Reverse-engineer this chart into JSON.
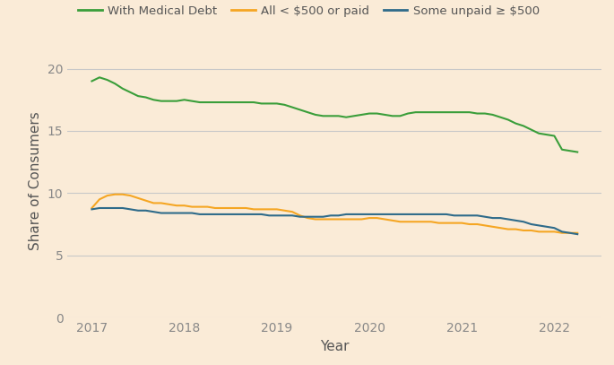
{
  "title": "",
  "xlabel": "Year",
  "ylabel": "Share of Consumers",
  "background_color": "#faebd7",
  "grid_color": "#c8c8c8",
  "ylim": [
    0,
    22
  ],
  "yticks": [
    0,
    5,
    10,
    15,
    20
  ],
  "legend_labels": [
    "With Medical Debt",
    "All < $500 or paid",
    "Some unpaid ≥ $500"
  ],
  "legend_colors": [
    "#3a9e3a",
    "#f5a623",
    "#2e6b8a"
  ],
  "series": {
    "with_medical_debt": {
      "color": "#3a9e3a",
      "x": [
        2017.0,
        2017.083,
        2017.167,
        2017.25,
        2017.333,
        2017.417,
        2017.5,
        2017.583,
        2017.667,
        2017.75,
        2017.833,
        2017.917,
        2018.0,
        2018.083,
        2018.167,
        2018.25,
        2018.333,
        2018.417,
        2018.5,
        2018.583,
        2018.667,
        2018.75,
        2018.833,
        2018.917,
        2019.0,
        2019.083,
        2019.167,
        2019.25,
        2019.333,
        2019.417,
        2019.5,
        2019.583,
        2019.667,
        2019.75,
        2019.833,
        2019.917,
        2020.0,
        2020.083,
        2020.167,
        2020.25,
        2020.333,
        2020.417,
        2020.5,
        2020.583,
        2020.667,
        2020.75,
        2020.833,
        2020.917,
        2021.0,
        2021.083,
        2021.167,
        2021.25,
        2021.333,
        2021.417,
        2021.5,
        2021.583,
        2021.667,
        2021.75,
        2021.833,
        2021.917,
        2022.0,
        2022.083,
        2022.167,
        2022.25
      ],
      "y": [
        19.0,
        19.3,
        19.1,
        18.8,
        18.4,
        18.1,
        17.8,
        17.7,
        17.5,
        17.4,
        17.4,
        17.4,
        17.5,
        17.4,
        17.3,
        17.3,
        17.3,
        17.3,
        17.3,
        17.3,
        17.3,
        17.3,
        17.2,
        17.2,
        17.2,
        17.1,
        16.9,
        16.7,
        16.5,
        16.3,
        16.2,
        16.2,
        16.2,
        16.1,
        16.2,
        16.3,
        16.4,
        16.4,
        16.3,
        16.2,
        16.2,
        16.4,
        16.5,
        16.5,
        16.5,
        16.5,
        16.5,
        16.5,
        16.5,
        16.5,
        16.4,
        16.4,
        16.3,
        16.1,
        15.9,
        15.6,
        15.4,
        15.1,
        14.8,
        14.7,
        14.6,
        13.5,
        13.4,
        13.3
      ]
    },
    "all_less_500_or_paid": {
      "color": "#f5a623",
      "x": [
        2017.0,
        2017.083,
        2017.167,
        2017.25,
        2017.333,
        2017.417,
        2017.5,
        2017.583,
        2017.667,
        2017.75,
        2017.833,
        2017.917,
        2018.0,
        2018.083,
        2018.167,
        2018.25,
        2018.333,
        2018.417,
        2018.5,
        2018.583,
        2018.667,
        2018.75,
        2018.833,
        2018.917,
        2019.0,
        2019.083,
        2019.167,
        2019.25,
        2019.333,
        2019.417,
        2019.5,
        2019.583,
        2019.667,
        2019.75,
        2019.833,
        2019.917,
        2020.0,
        2020.083,
        2020.167,
        2020.25,
        2020.333,
        2020.417,
        2020.5,
        2020.583,
        2020.667,
        2020.75,
        2020.833,
        2020.917,
        2021.0,
        2021.083,
        2021.167,
        2021.25,
        2021.333,
        2021.417,
        2021.5,
        2021.583,
        2021.667,
        2021.75,
        2021.833,
        2021.917,
        2022.0,
        2022.083,
        2022.167,
        2022.25
      ],
      "y": [
        8.8,
        9.5,
        9.8,
        9.9,
        9.9,
        9.8,
        9.6,
        9.4,
        9.2,
        9.2,
        9.1,
        9.0,
        9.0,
        8.9,
        8.9,
        8.9,
        8.8,
        8.8,
        8.8,
        8.8,
        8.8,
        8.7,
        8.7,
        8.7,
        8.7,
        8.6,
        8.5,
        8.2,
        8.0,
        7.9,
        7.9,
        7.9,
        7.9,
        7.9,
        7.9,
        7.9,
        8.0,
        8.0,
        7.9,
        7.8,
        7.7,
        7.7,
        7.7,
        7.7,
        7.7,
        7.6,
        7.6,
        7.6,
        7.6,
        7.5,
        7.5,
        7.4,
        7.3,
        7.2,
        7.1,
        7.1,
        7.0,
        7.0,
        6.9,
        6.9,
        6.9,
        6.8,
        6.8,
        6.8
      ]
    },
    "some_unpaid_ge_500": {
      "color": "#2e6b8a",
      "x": [
        2017.0,
        2017.083,
        2017.167,
        2017.25,
        2017.333,
        2017.417,
        2017.5,
        2017.583,
        2017.667,
        2017.75,
        2017.833,
        2017.917,
        2018.0,
        2018.083,
        2018.167,
        2018.25,
        2018.333,
        2018.417,
        2018.5,
        2018.583,
        2018.667,
        2018.75,
        2018.833,
        2018.917,
        2019.0,
        2019.083,
        2019.167,
        2019.25,
        2019.333,
        2019.417,
        2019.5,
        2019.583,
        2019.667,
        2019.75,
        2019.833,
        2019.917,
        2020.0,
        2020.083,
        2020.167,
        2020.25,
        2020.333,
        2020.417,
        2020.5,
        2020.583,
        2020.667,
        2020.75,
        2020.833,
        2020.917,
        2021.0,
        2021.083,
        2021.167,
        2021.25,
        2021.333,
        2021.417,
        2021.5,
        2021.583,
        2021.667,
        2021.75,
        2021.833,
        2021.917,
        2022.0,
        2022.083,
        2022.167,
        2022.25
      ],
      "y": [
        8.7,
        8.8,
        8.8,
        8.8,
        8.8,
        8.7,
        8.6,
        8.6,
        8.5,
        8.4,
        8.4,
        8.4,
        8.4,
        8.4,
        8.3,
        8.3,
        8.3,
        8.3,
        8.3,
        8.3,
        8.3,
        8.3,
        8.3,
        8.2,
        8.2,
        8.2,
        8.2,
        8.1,
        8.1,
        8.1,
        8.1,
        8.2,
        8.2,
        8.3,
        8.3,
        8.3,
        8.3,
        8.3,
        8.3,
        8.3,
        8.3,
        8.3,
        8.3,
        8.3,
        8.3,
        8.3,
        8.3,
        8.2,
        8.2,
        8.2,
        8.2,
        8.1,
        8.0,
        8.0,
        7.9,
        7.8,
        7.7,
        7.5,
        7.4,
        7.3,
        7.2,
        6.9,
        6.8,
        6.7
      ]
    }
  },
  "subplot_adjust": [
    0.11,
    0.13,
    0.98,
    0.88
  ]
}
